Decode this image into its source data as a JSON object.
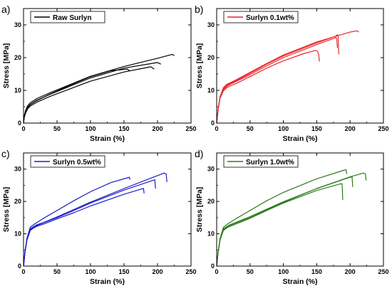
{
  "chart_data": [
    {
      "type": "line",
      "panel_label": "a)",
      "xlabel": "Strain (%)",
      "ylabel": "Stress [MPa]",
      "xlim": [
        0,
        250
      ],
      "ylim": [
        0,
        35
      ],
      "xticks": [
        0,
        50,
        100,
        150,
        200,
        250
      ],
      "yticks": [
        0,
        10,
        20,
        30
      ],
      "legend": "top-left",
      "color": "#000000",
      "series": [
        {
          "name": "Raw Surlyn",
          "x": [
            0,
            1,
            3,
            6,
            10,
            20,
            40,
            70,
            100,
            150,
            200,
            222,
            225
          ],
          "y": [
            0,
            2.0,
            3.8,
            5.2,
            6.2,
            7.5,
            9.3,
            11.8,
            14.3,
            17.3,
            19.8,
            21.0,
            20.6
          ]
        },
        {
          "x": [
            0,
            1,
            3,
            6,
            10,
            20,
            40,
            70,
            100,
            150,
            200,
            205
          ],
          "y": [
            0,
            1.8,
            3.4,
            4.8,
            5.7,
            7.0,
            8.8,
            11.3,
            13.8,
            16.8,
            18.5,
            18.0
          ]
        },
        {
          "x": [
            0,
            1,
            3,
            6,
            10,
            20,
            40,
            70,
            100,
            150,
            190,
            195
          ],
          "y": [
            0,
            1.6,
            3.0,
            4.3,
            5.2,
            6.4,
            8.2,
            10.5,
            12.8,
            15.6,
            17.2,
            16.5
          ]
        },
        {
          "x": [
            0,
            1,
            3,
            6,
            10,
            20,
            40,
            70,
            100,
            130,
            155,
            158
          ],
          "y": [
            0,
            1.8,
            3.3,
            4.7,
            5.6,
            6.9,
            8.9,
            11.6,
            14.2,
            16.0,
            16.5,
            16.0
          ]
        }
      ]
    },
    {
      "type": "line",
      "panel_label": "b)",
      "xlabel": "Strain (%)",
      "ylabel": "Stress [MPa]",
      "xlim": [
        0,
        250
      ],
      "ylim": [
        0,
        35
      ],
      "xticks": [
        0,
        50,
        100,
        150,
        200,
        250
      ],
      "yticks": [
        0,
        10,
        20,
        30
      ],
      "legend": "top-left",
      "color": "#e8272b",
      "series": [
        {
          "name": "Surlyn 0.1wt%",
          "x": [
            0,
            2,
            5,
            10,
            15,
            20,
            30,
            50,
            75,
            100,
            150,
            200,
            210,
            213
          ],
          "y": [
            0,
            4,
            8,
            10.8,
            11.8,
            12.3,
            13.3,
            15.5,
            18.2,
            20.8,
            24.8,
            27.8,
            28.2,
            27.8
          ]
        },
        {
          "x": [
            0,
            2,
            5,
            10,
            15,
            20,
            30,
            50,
            75,
            100,
            150,
            178,
            181,
            182,
            183
          ],
          "y": [
            0,
            4,
            8,
            10.5,
            11.5,
            12.1,
            13.0,
            15.2,
            18.0,
            20.5,
            24.5,
            26.5,
            27.0,
            26.5,
            21.0
          ]
        },
        {
          "x": [
            0,
            2,
            5,
            10,
            15,
            20,
            30,
            50,
            75,
            100,
            150,
            177,
            179,
            180,
            181
          ],
          "y": [
            0,
            4,
            8,
            10.2,
            11.2,
            11.8,
            12.8,
            14.8,
            17.5,
            20.0,
            24.0,
            26.0,
            26.2,
            25.5,
            23.0
          ]
        },
        {
          "x": [
            0,
            2,
            5,
            10,
            15,
            20,
            30,
            50,
            75,
            100,
            130,
            148,
            151,
            153,
            154
          ],
          "y": [
            0,
            3.8,
            7.6,
            9.8,
            10.8,
            11.3,
            12.2,
            14.2,
            16.8,
            19.0,
            21.2,
            22.2,
            22.0,
            21.0,
            18.8
          ]
        }
      ]
    },
    {
      "type": "line",
      "panel_label": "c)",
      "xlabel": "Strain (%)",
      "ylabel": "Stress [MPa]",
      "xlim": [
        0,
        250
      ],
      "ylim": [
        0,
        35
      ],
      "xticks": [
        0,
        50,
        100,
        150,
        200,
        250
      ],
      "yticks": [
        0,
        10,
        20,
        30
      ],
      "legend": "top-left",
      "color": "#1b1bc8",
      "series": [
        {
          "name": "Surlyn 0.5wt%",
          "x": [
            0,
            2,
            5,
            10,
            15,
            20,
            30,
            50,
            75,
            100,
            150,
            200,
            210,
            213,
            214
          ],
          "y": [
            0,
            4,
            8,
            11.5,
            12.2,
            12.8,
            13.5,
            15.2,
            17.5,
            19.8,
            24.0,
            28.0,
            28.8,
            28.5,
            26.0
          ]
        },
        {
          "x": [
            0,
            2,
            5,
            10,
            15,
            20,
            30,
            50,
            75,
            100,
            150,
            193,
            196,
            197
          ],
          "y": [
            0,
            4,
            8,
            11.2,
            12.0,
            12.6,
            13.4,
            15.0,
            17.2,
            19.5,
            23.5,
            26.5,
            26.7,
            24.0
          ]
        },
        {
          "x": [
            0,
            2,
            5,
            10,
            15,
            20,
            30,
            50,
            75,
            100,
            150,
            175,
            179,
            180
          ],
          "y": [
            0,
            4,
            8,
            11.0,
            11.8,
            12.3,
            13.0,
            14.6,
            16.5,
            18.6,
            22.2,
            23.8,
            24.0,
            22.5
          ]
        },
        {
          "x": [
            0,
            2,
            5,
            10,
            15,
            20,
            30,
            50,
            75,
            100,
            130,
            155,
            158,
            159
          ],
          "y": [
            0,
            4.2,
            8.5,
            12.0,
            12.8,
            13.5,
            14.8,
            17.2,
            20.2,
            23.0,
            25.8,
            27.3,
            27.5,
            26.8
          ]
        }
      ]
    },
    {
      "type": "line",
      "panel_label": "d)",
      "xlabel": "Strain (%)",
      "ylabel": "Stress [MPa]",
      "xlim": [
        0,
        250
      ],
      "ylim": [
        0,
        35
      ],
      "xticks": [
        0,
        50,
        100,
        150,
        200,
        250
      ],
      "yticks": [
        0,
        10,
        20,
        30
      ],
      "legend": "top-left",
      "color": "#2e7a1a",
      "series": [
        {
          "name": "Surlyn 1.0wt%",
          "x": [
            0,
            2,
            5,
            10,
            15,
            20,
            30,
            50,
            75,
            100,
            150,
            200,
            220,
            223,
            224
          ],
          "y": [
            0,
            4,
            8,
            11.5,
            12.2,
            12.8,
            13.6,
            15.3,
            17.6,
            19.9,
            24.0,
            27.6,
            28.8,
            28.5,
            26.5
          ]
        },
        {
          "x": [
            0,
            2,
            5,
            10,
            15,
            20,
            30,
            50,
            75,
            100,
            150,
            200,
            203,
            204
          ],
          "y": [
            0,
            4,
            8,
            11.3,
            12.0,
            12.6,
            13.4,
            15.0,
            17.4,
            19.7,
            24.0,
            27.5,
            27.6,
            24.5
          ]
        },
        {
          "x": [
            0,
            2,
            5,
            10,
            15,
            20,
            30,
            50,
            75,
            100,
            150,
            185,
            188,
            189
          ],
          "y": [
            0,
            4,
            8,
            11.0,
            11.8,
            12.3,
            13.1,
            14.8,
            17.2,
            19.5,
            23.4,
            25.4,
            25.5,
            20.5
          ]
        },
        {
          "x": [
            0,
            2,
            5,
            10,
            15,
            20,
            30,
            50,
            75,
            100,
            150,
            190,
            194,
            195
          ],
          "y": [
            0,
            4.2,
            8.5,
            12.0,
            12.8,
            13.5,
            14.8,
            17.2,
            20.2,
            22.8,
            27.0,
            29.6,
            29.8,
            28.5
          ]
        }
      ]
    }
  ]
}
